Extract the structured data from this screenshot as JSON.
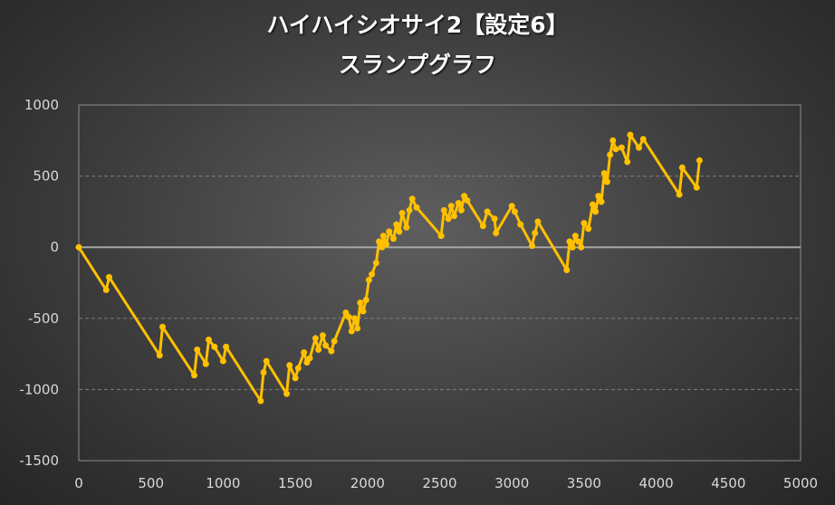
{
  "chart_data": {
    "type": "line",
    "title": "ハイハイシオサイ2【設定6】",
    "subtitle": "スランプグラフ",
    "xlabel": "",
    "ylabel": "",
    "xlim": [
      0,
      5000
    ],
    "ylim": [
      -1500,
      1000
    ],
    "x_ticks": [
      0,
      500,
      1000,
      1500,
      2000,
      2500,
      3000,
      3500,
      4000,
      4500,
      5000
    ],
    "y_ticks": [
      1000,
      500,
      0,
      -500,
      -1000,
      -1500
    ],
    "grid": true,
    "legend": "none",
    "line_color": "#ffc000",
    "zero_line_color": "#a6a6a6",
    "series": [
      {
        "x": [
          0,
          190,
          210,
          560,
          580,
          800,
          820,
          880,
          900,
          940,
          1000,
          1020,
          1260,
          1280,
          1300,
          1440,
          1460,
          1500,
          1520,
          1560,
          1580,
          1600,
          1640,
          1660,
          1690,
          1710,
          1750,
          1770,
          1850,
          1870,
          1890,
          1910,
          1930,
          1950,
          1970,
          1990,
          2010,
          2030,
          2060,
          2080,
          2100,
          2110,
          2130,
          2150,
          2180,
          2200,
          2220,
          2240,
          2270,
          2290,
          2310,
          2340,
          2510,
          2530,
          2560,
          2580,
          2600,
          2630,
          2650,
          2670,
          2690,
          2800,
          2830,
          2880,
          2890,
          3000,
          3020,
          3060,
          3140,
          3160,
          3180,
          3380,
          3400,
          3420,
          3440,
          3460,
          3480,
          3500,
          3530,
          3560,
          3580,
          3600,
          3620,
          3640,
          3660,
          3680,
          3700,
          3720,
          3760,
          3800,
          3820,
          3880,
          3910,
          4160,
          4180,
          4280,
          4300
        ],
        "y": [
          0,
          -300,
          -210,
          -760,
          -560,
          -900,
          -720,
          -820,
          -650,
          -700,
          -800,
          -700,
          -1080,
          -880,
          -800,
          -1030,
          -830,
          -920,
          -850,
          -740,
          -810,
          -780,
          -640,
          -720,
          -620,
          -690,
          -730,
          -660,
          -460,
          -490,
          -590,
          -500,
          -570,
          -390,
          -450,
          -370,
          -230,
          -190,
          -110,
          40,
          0,
          80,
          20,
          110,
          60,
          160,
          110,
          240,
          140,
          260,
          340,
          280,
          80,
          260,
          200,
          290,
          220,
          310,
          260,
          360,
          330,
          150,
          250,
          200,
          100,
          290,
          250,
          160,
          10,
          100,
          180,
          -160,
          40,
          0,
          80,
          40,
          0,
          170,
          130,
          300,
          250,
          360,
          320,
          520,
          460,
          650,
          750,
          690,
          700,
          600,
          790,
          700,
          760,
          370,
          560,
          420,
          610
        ]
      }
    ]
  }
}
